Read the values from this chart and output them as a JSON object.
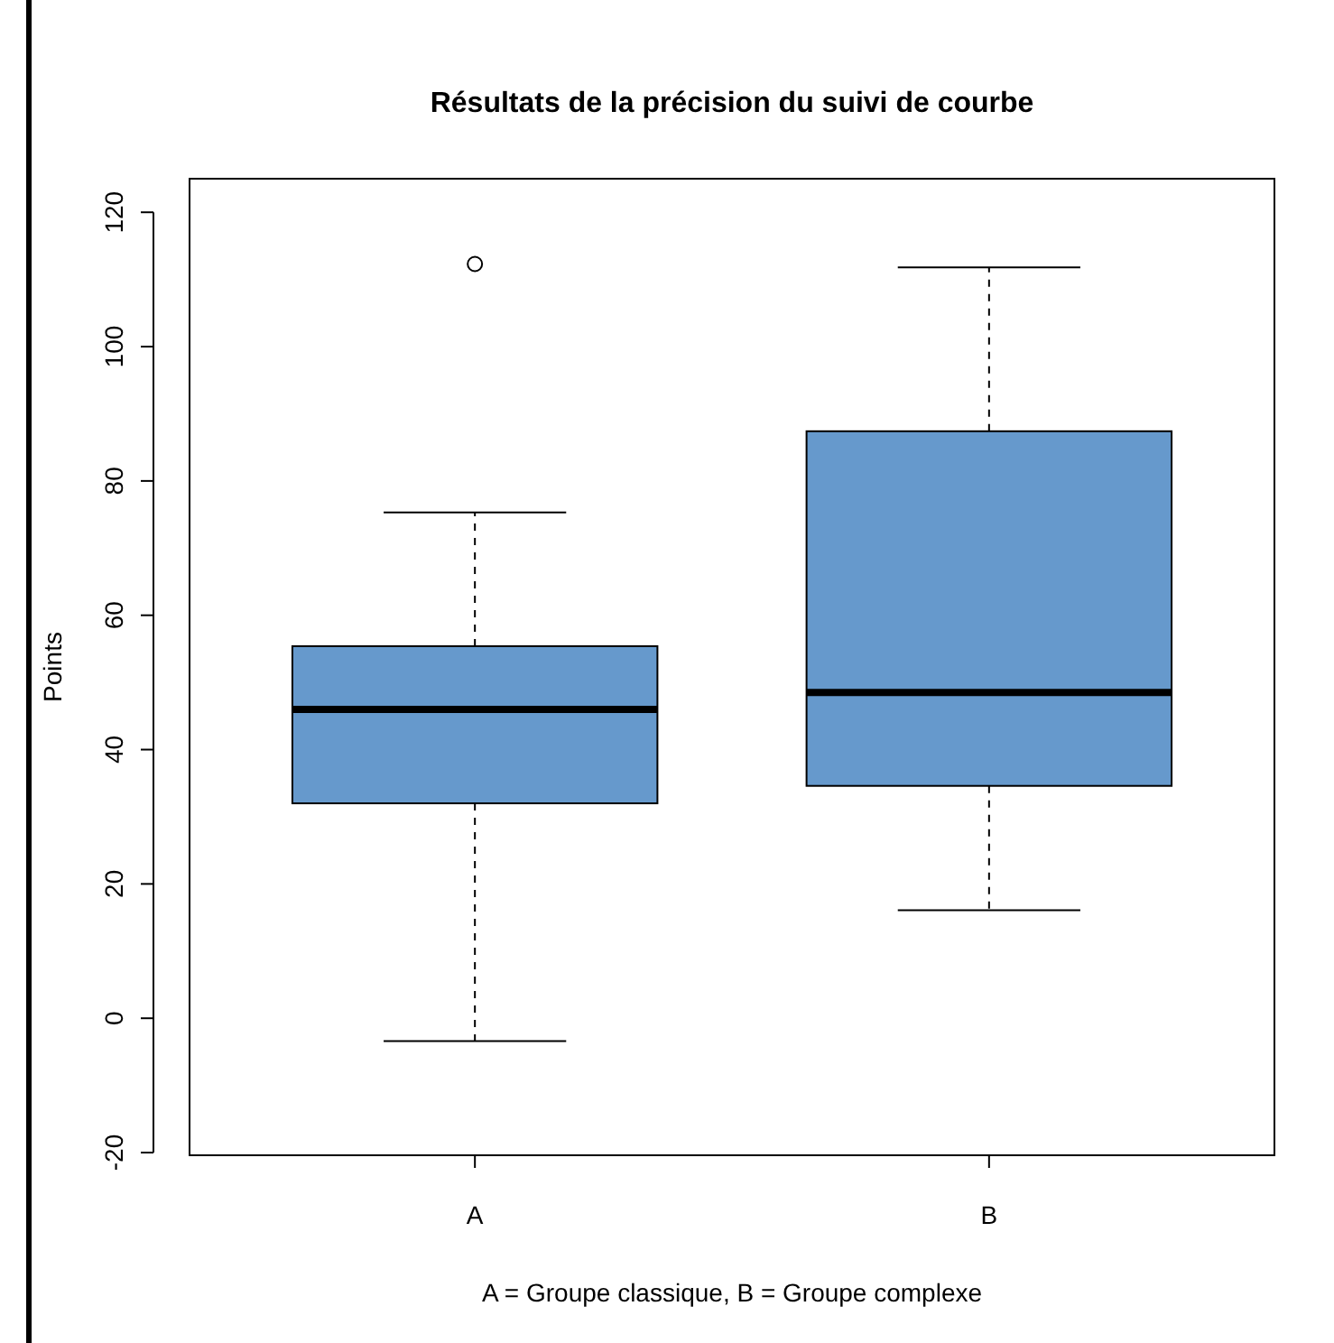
{
  "chart_data": {
    "type": "box",
    "title": "Résultats de la précision du suivi de courbe",
    "ylabel": "Points",
    "categories": [
      "A",
      "B"
    ],
    "boxes": [
      {
        "low": -3.4,
        "q1": 32,
        "median": 46,
        "q3": 55.4,
        "high": 75.3,
        "outliers": [
          112.3
        ]
      },
      {
        "low": 16.1,
        "q1": 34.6,
        "median": 48.5,
        "q3": 87.4,
        "high": 111.8
      }
    ],
    "color": "#6699cc",
    "ylim": [
      -20.4,
      125
    ],
    "yticks": [
      -20,
      0,
      20,
      40,
      60,
      80,
      100,
      120
    ],
    "annotations": [
      "A = Groupe classique, B = Groupe complexe"
    ]
  }
}
